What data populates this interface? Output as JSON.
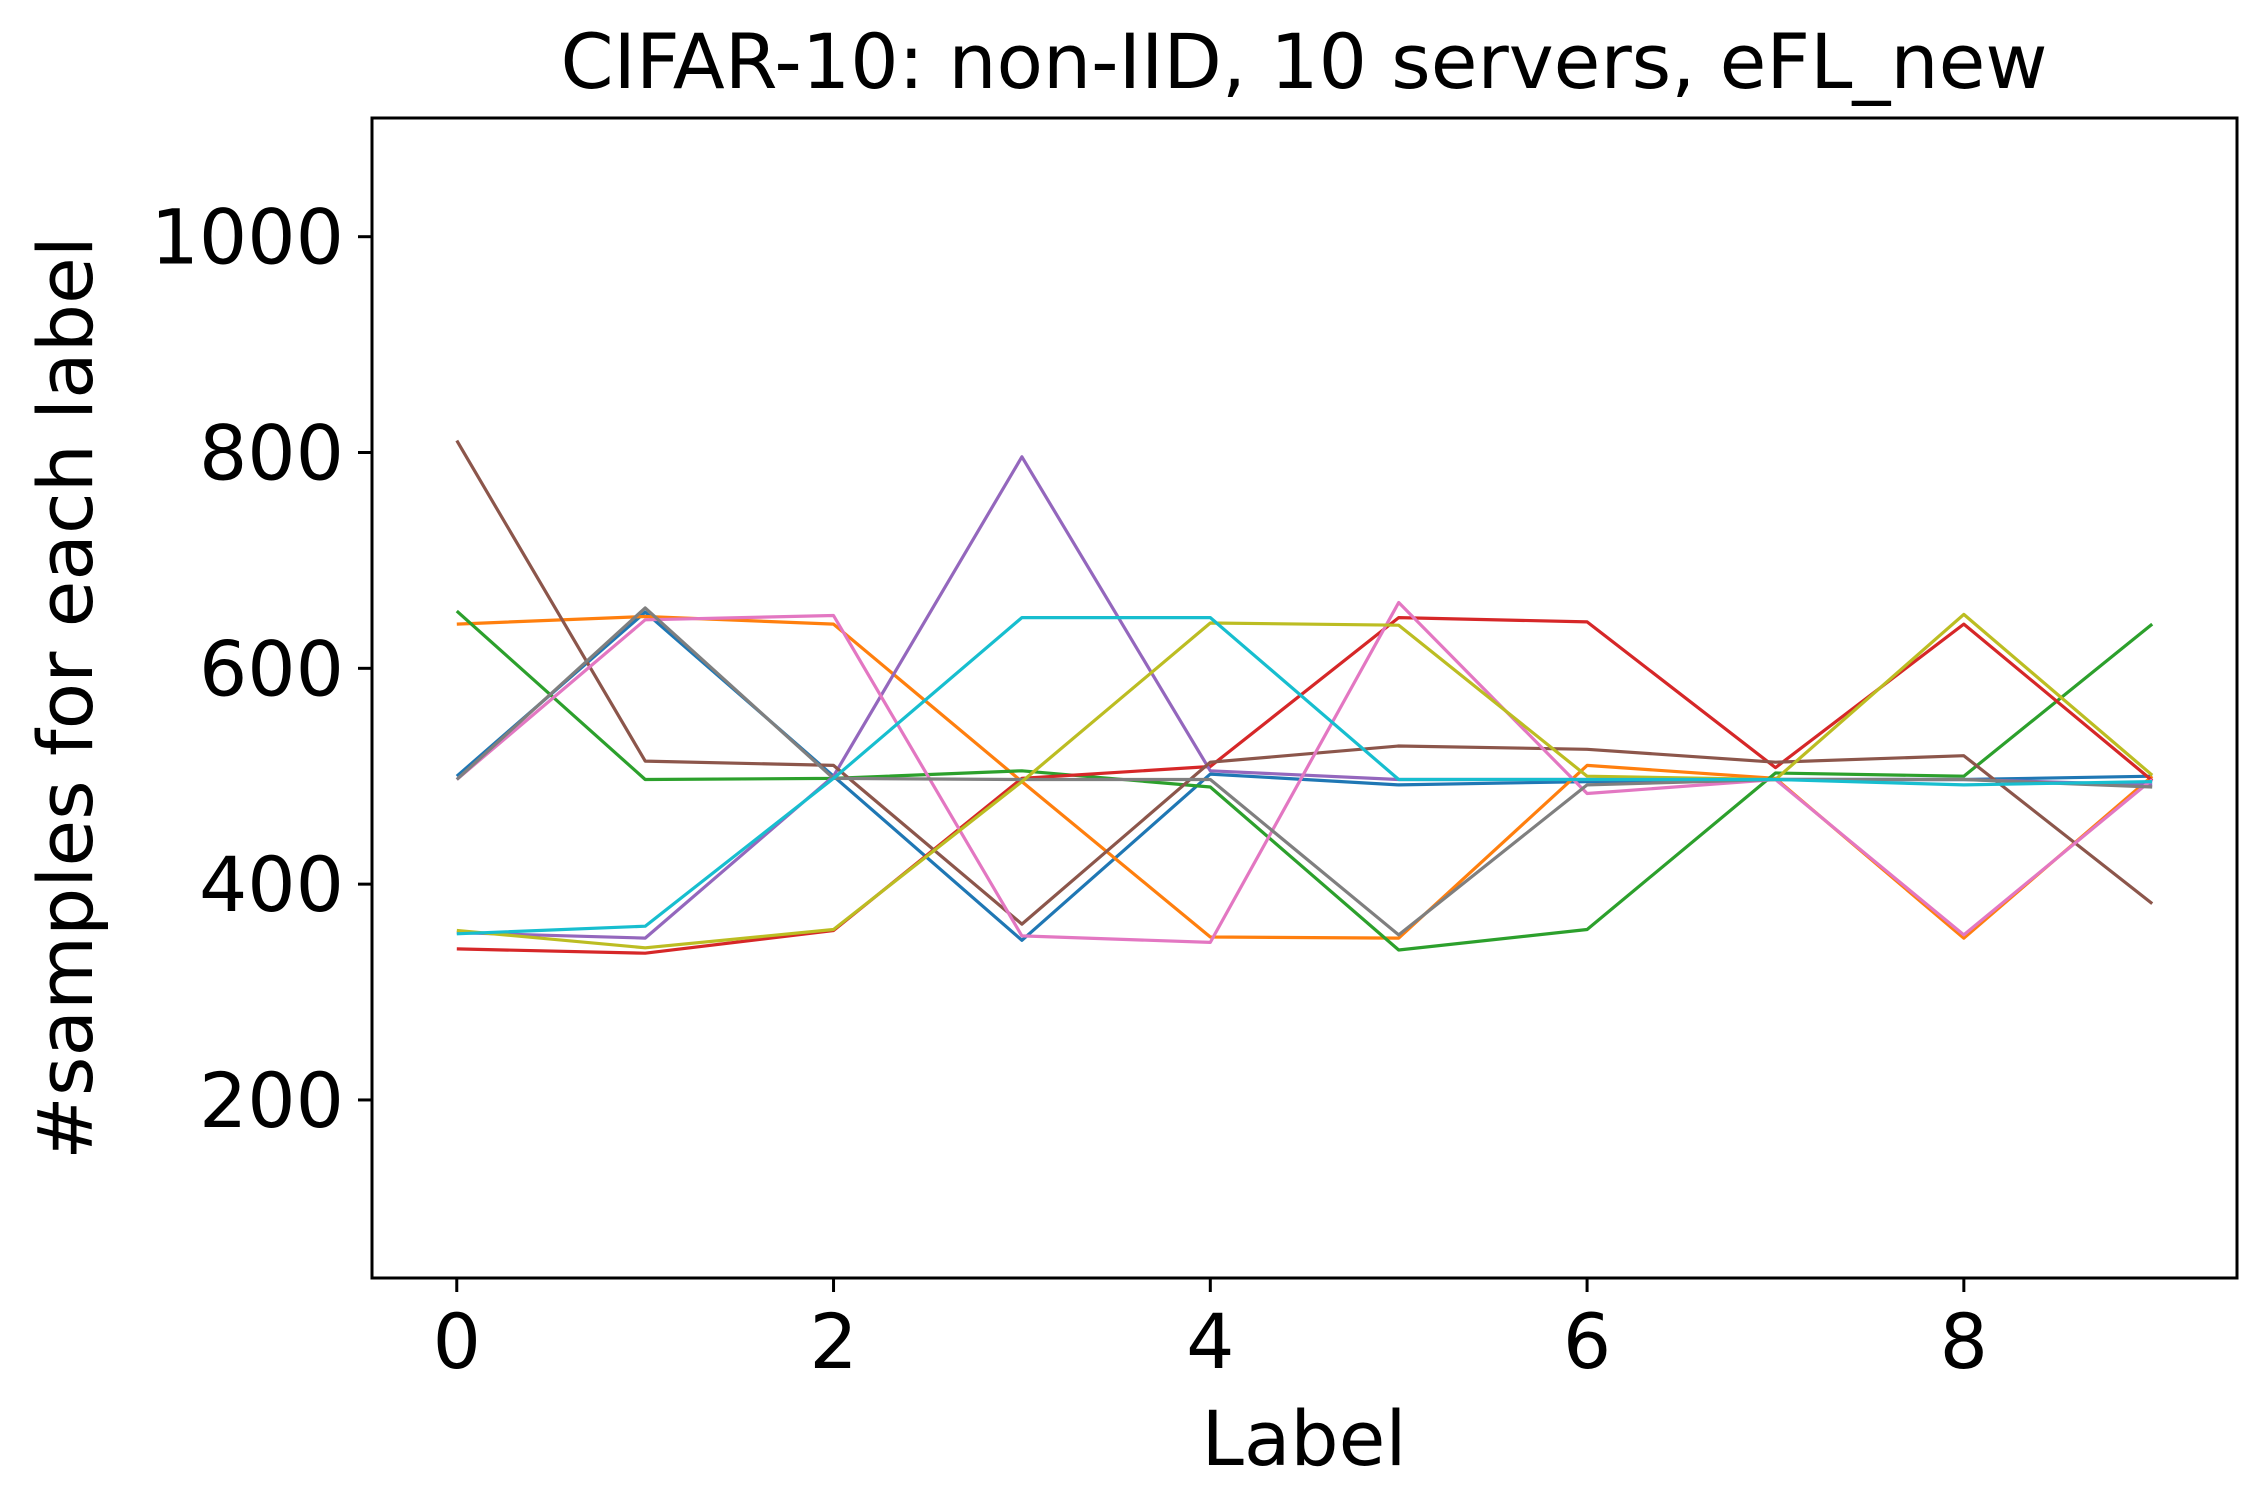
{
  "chart_data": {
    "type": "line",
    "title": "CIFAR-10: non-IID, 10 servers, eFL_new",
    "xlabel": "Label",
    "ylabel": "#samples for each label",
    "x": [
      0,
      1,
      2,
      3,
      4,
      5,
      6,
      7,
      8,
      9
    ],
    "xlim": [
      -0.45,
      9.45
    ],
    "ylim": [
      35,
      1110
    ],
    "xticks": [
      "0",
      "2",
      "4",
      "6",
      "8"
    ],
    "xtick_values": [
      0,
      2,
      4,
      6,
      8
    ],
    "yticks": [
      "200",
      "400",
      "600",
      "800",
      "1000"
    ],
    "ytick_values": [
      200,
      400,
      600,
      800,
      1000
    ],
    "grid": false,
    "legend": "none",
    "series": [
      {
        "color": "#1f77b4",
        "values": [
          500,
          652,
          500,
          348,
          502,
          492,
          495,
          497,
          497,
          500
        ]
      },
      {
        "color": "#ff7f0e",
        "values": [
          641,
          648,
          641,
          495,
          351,
          350,
          510,
          498,
          350,
          500
        ]
      },
      {
        "color": "#2ca02c",
        "values": [
          653,
          497,
          498,
          505,
          490,
          339,
          358,
          503,
          500,
          641
        ]
      },
      {
        "color": "#d62728",
        "values": [
          340,
          336,
          357,
          498,
          509,
          647,
          643,
          508,
          641,
          496
        ]
      },
      {
        "color": "#9467bd",
        "values": [
          355,
          350,
          500,
          796,
          505,
          497,
          497,
          497,
          497,
          492
        ]
      },
      {
        "color": "#8c564b",
        "values": [
          811,
          514,
          510,
          363,
          513,
          528,
          525,
          513,
          519,
          382
        ]
      },
      {
        "color": "#e377c2",
        "values": [
          497,
          645,
          649,
          352,
          346,
          661,
          484,
          497,
          353,
          497
        ]
      },
      {
        "color": "#7f7f7f",
        "values": [
          497,
          656,
          498,
          497,
          497,
          353,
          492,
          497,
          497,
          490
        ]
      },
      {
        "color": "#bcbd22",
        "values": [
          357,
          341,
          358,
          495,
          642,
          640,
          500,
          497,
          650,
          501
        ]
      },
      {
        "color": "#17becf",
        "values": [
          354,
          361,
          498,
          647,
          647,
          497,
          497,
          497,
          492,
          495
        ]
      }
    ]
  }
}
